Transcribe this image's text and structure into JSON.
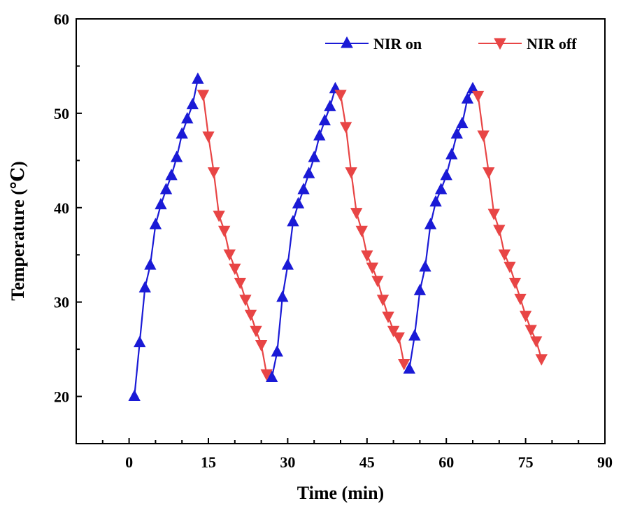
{
  "chart_data": {
    "type": "line",
    "xlabel": "Time (min)",
    "ylabel": "Temperature (℃)",
    "xlim": [
      -10,
      90
    ],
    "ylim": [
      15,
      60
    ],
    "xticks": [
      0,
      15,
      30,
      45,
      60,
      75,
      90
    ],
    "yticks": [
      20,
      30,
      40,
      50,
      60
    ],
    "grid": false,
    "legend_position": "top-right",
    "series": [
      {
        "name": "NIR on",
        "color": "#1a1ad6",
        "marker": "triangle-up",
        "segments": [
          {
            "x": [
              1,
              2,
              3,
              4,
              5,
              6,
              7,
              8,
              9,
              10,
              11,
              12,
              13
            ],
            "y": [
              20.0,
              25.7,
              31.5,
              33.9,
              38.2,
              40.3,
              41.9,
              43.4,
              45.3,
              47.8,
              49.4,
              50.9,
              53.6
            ]
          },
          {
            "x": [
              27,
              28,
              29,
              30,
              31,
              32,
              33,
              34,
              35,
              36,
              37,
              38,
              39
            ],
            "y": [
              22.0,
              24.7,
              30.5,
              33.9,
              38.5,
              40.4,
              41.9,
              43.6,
              45.3,
              47.6,
              49.2,
              50.7,
              52.6
            ]
          },
          {
            "x": [
              53,
              54,
              55,
              56,
              57,
              58,
              59,
              60,
              61,
              62,
              63,
              64,
              65
            ],
            "y": [
              22.9,
              26.4,
              31.2,
              33.7,
              38.2,
              40.6,
              41.9,
              43.4,
              45.6,
              47.8,
              48.9,
              51.5,
              52.6
            ]
          }
        ]
      },
      {
        "name": "NIR off",
        "color": "#e84545",
        "marker": "triangle-down",
        "segments": [
          {
            "x": [
              14,
              15,
              16,
              17,
              18,
              19,
              20,
              21,
              22,
              23,
              24,
              25,
              26
            ],
            "y": [
              52.0,
              47.6,
              43.8,
              39.2,
              37.6,
              35.1,
              33.6,
              32.1,
              30.3,
              28.7,
              27.0,
              25.5,
              22.4
            ]
          },
          {
            "x": [
              40,
              41,
              42,
              43,
              44,
              45,
              46,
              47,
              48,
              49,
              50,
              51,
              52
            ],
            "y": [
              52.0,
              48.6,
              43.8,
              39.5,
              37.6,
              35.0,
              33.7,
              32.3,
              30.3,
              28.5,
              27.0,
              26.3,
              23.5
            ]
          },
          {
            "x": [
              66,
              67,
              68,
              69,
              70,
              71,
              72,
              73,
              74,
              75,
              76,
              77,
              78
            ],
            "y": [
              51.9,
              47.7,
              43.8,
              39.4,
              37.7,
              35.1,
              33.8,
              32.1,
              30.4,
              28.6,
              27.1,
              25.9,
              24.0
            ]
          }
        ]
      }
    ]
  }
}
